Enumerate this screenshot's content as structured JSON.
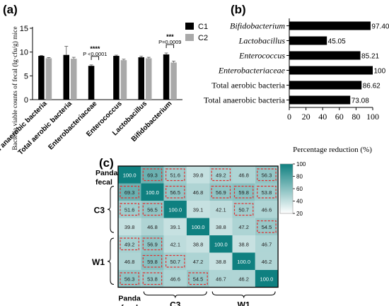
{
  "panels": {
    "a": "(a)",
    "b": "(b)",
    "c": "(c)"
  },
  "chart_data": [
    {
      "type": "bar",
      "ylabel": "Bacteria viable counts of fecal (lg·cfu/g) mice",
      "ylim": [
        0,
        15
      ],
      "yticks": [
        0,
        5,
        10,
        15
      ],
      "categories": [
        "Total anaerobic bacteria",
        "Total aerobic bacteria",
        "Enterobacteriaceae",
        "Enterococcus",
        "Lactobacillus",
        "Bifidobacterium"
      ],
      "series": [
        {
          "name": "C1",
          "color": "#000000",
          "values": [
            9.2,
            9.4,
            7.1,
            9.2,
            8.9,
            9.5
          ],
          "errors": [
            0.1,
            1.8,
            0.2,
            0.15,
            0.25,
            0.3
          ]
        },
        {
          "name": "C2",
          "color": "#a9a9a9",
          "values": [
            8.7,
            8.6,
            0,
            8.3,
            8.7,
            7.8
          ],
          "errors": [
            0.15,
            0.3,
            0,
            0.2,
            0.2,
            0.3
          ]
        }
      ],
      "annotations": [
        {
          "category": "Enterobacteriaceae",
          "stars": "****",
          "p": "P <0.0001"
        },
        {
          "category": "Bifidobacterium",
          "stars": "***",
          "p": "P=0.0009"
        }
      ],
      "legend": "top-right",
      "grid": false
    },
    {
      "type": "bar",
      "orientation": "horizontal",
      "categories": [
        "Bifidobacterium",
        "Lactobacillus",
        "Enterococcus",
        "Enterobacteriaceae",
        "Total aerobic bacteria",
        "Total anaerobic bacteria"
      ],
      "italic": [
        true,
        true,
        true,
        true,
        false,
        false
      ],
      "values": [
        97.4,
        45.05,
        85.21,
        100,
        86.62,
        73.08
      ],
      "value_labels": [
        "97.40",
        "45.05",
        "85.21",
        "100",
        "86.62",
        "73.08"
      ],
      "xlabel": "Percentage reduction (%)",
      "xlim": [
        0,
        100
      ],
      "xticks": [
        0,
        20,
        40,
        60,
        80,
        100
      ],
      "color": "#000000"
    },
    {
      "type": "heatmap",
      "row_groups": [
        "Panda fecal",
        "C3",
        "W1"
      ],
      "col_groups": [
        "Panda fecal",
        "C3",
        "W1"
      ],
      "matrix": [
        [
          100.0,
          69.3,
          51.6,
          39.8,
          49.2,
          46.8,
          56.3
        ],
        [
          69.3,
          100.0,
          56.5,
          46.8,
          56.9,
          59.8,
          53.8
        ],
        [
          51.6,
          56.5,
          100.0,
          39.1,
          42.1,
          50.7,
          46.6
        ],
        [
          39.8,
          46.8,
          39.1,
          100.0,
          38.8,
          47.2,
          54.5
        ],
        [
          49.2,
          56.9,
          42.1,
          38.8,
          100.0,
          38.8,
          46.7
        ],
        [
          46.8,
          59.8,
          50.7,
          47.2,
          38.8,
          100.0,
          46.2
        ],
        [
          56.3,
          53.8,
          46.6,
          54.5,
          46.7,
          46.2,
          100.0
        ]
      ],
      "highlighted": [
        [
          0,
          1
        ],
        [
          0,
          2
        ],
        [
          0,
          4
        ],
        [
          0,
          6
        ],
        [
          1,
          0
        ],
        [
          1,
          2
        ],
        [
          1,
          4
        ],
        [
          1,
          5
        ],
        [
          1,
          6
        ],
        [
          2,
          0
        ],
        [
          2,
          1
        ],
        [
          2,
          5
        ],
        [
          3,
          6
        ],
        [
          4,
          0
        ],
        [
          4,
          1
        ],
        [
          5,
          1
        ],
        [
          5,
          2
        ],
        [
          6,
          0
        ],
        [
          6,
          1
        ],
        [
          6,
          3
        ]
      ],
      "colorbar": {
        "min": 20,
        "max": 100,
        "ticks": [
          20,
          40,
          60,
          80,
          100
        ],
        "low_color": "#ffffff",
        "high_color": "#0f8080"
      }
    }
  ]
}
